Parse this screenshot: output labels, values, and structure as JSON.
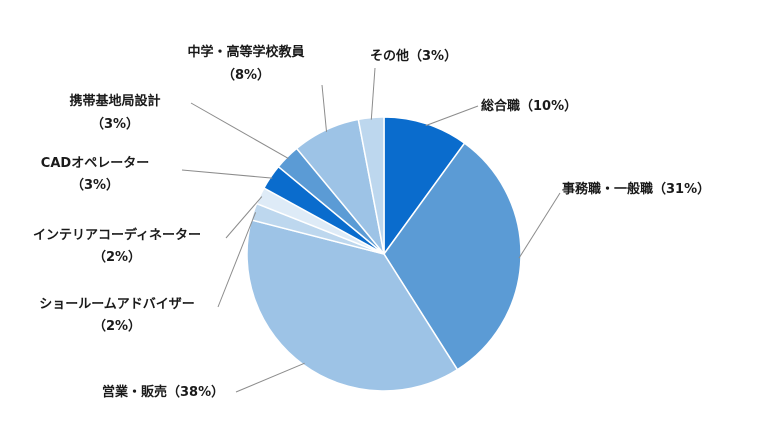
{
  "chart_data": {
    "type": "pie",
    "title": "",
    "start": "12 o'clock",
    "direction": "clockwise",
    "legend": "none",
    "slices": [
      {
        "name": "総合職",
        "value": 10,
        "text": "（10%）",
        "color": "#0a6ccd"
      },
      {
        "name": "事務職・一般職",
        "value": 31,
        "text": "（31%）",
        "color": "#5b9bd5"
      },
      {
        "name": "営業・販売",
        "value": 38,
        "text": "（38%）",
        "color": "#9dc3e6"
      },
      {
        "name": "ショールームアドバイザー",
        "value": 2,
        "text": "（2%）",
        "color": "#bdd7ee"
      },
      {
        "name": "インテリアコーディネーター",
        "value": 2,
        "text": "（2%）",
        "color": "#deebf7"
      },
      {
        "name": "CADオペレーター",
        "value": 3,
        "text": "（3%）",
        "color": "#0a6ccd"
      },
      {
        "name": "携帯基地局設計",
        "value": 3,
        "text": "（3%）",
        "color": "#5b9bd5"
      },
      {
        "name": "中学・高等学校教員",
        "value": 8,
        "text": "（8%）",
        "color": "#9dc3e6"
      },
      {
        "name": "その他",
        "value": 3,
        "text": "（3%）",
        "color": "#bdd7ee"
      }
    ]
  }
}
